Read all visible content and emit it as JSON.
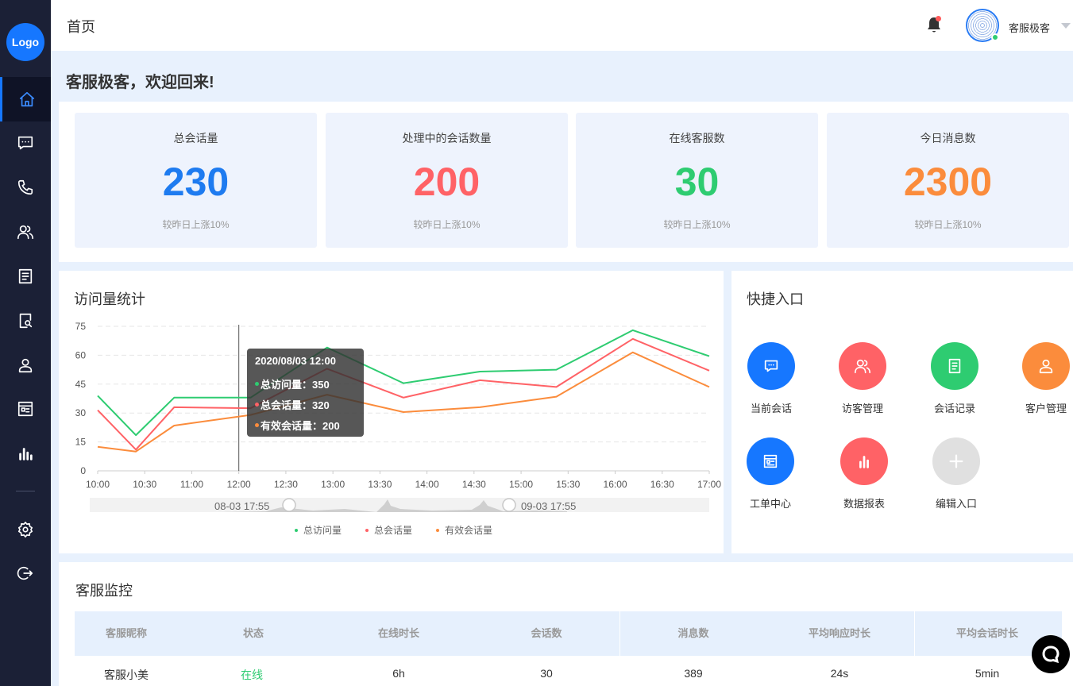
{
  "brand": {
    "logo_text": "Logo"
  },
  "header": {
    "title": "首页",
    "user_name": "客服极客"
  },
  "welcome": "客服极客，欢迎回来!",
  "stats": [
    {
      "label": "总会话量",
      "value": "230",
      "sub": "较昨日上涨10%",
      "color": "#1e7bf0"
    },
    {
      "label": "处理中的会话数量",
      "value": "200",
      "sub": "较昨日上涨10%",
      "color": "#ff6266"
    },
    {
      "label": "在线客服数",
      "value": "30",
      "sub": "较昨日上涨10%",
      "color": "#2ecc71"
    },
    {
      "label": "今日消息数",
      "value": "2300",
      "sub": "较昨日上涨10%",
      "color": "#fb8c3c"
    }
  ],
  "visits": {
    "title": "访问量统计",
    "tooltip": {
      "time": "2020/08/03 12:00",
      "rows": [
        {
          "text": "总访问量：350",
          "color": "#2ecc71"
        },
        {
          "text": "总会话量：320",
          "color": "#ff6266"
        },
        {
          "text": "有效会话量：200",
          "color": "#fb8c3c"
        }
      ]
    },
    "slider": {
      "start": "08-03 17:55",
      "end": "09-03 17:55"
    },
    "legend": [
      {
        "name": "总访问量",
        "color": "#2ecc71"
      },
      {
        "name": "总会话量",
        "color": "#ff6266"
      },
      {
        "name": "有效会话量",
        "color": "#fb8c3c"
      }
    ]
  },
  "chart_data": {
    "type": "line",
    "x": [
      "10:00",
      "10:30",
      "11:00",
      "12:00",
      "12:30",
      "13:00",
      "13:30",
      "14:00",
      "14:30",
      "15:00",
      "15:30",
      "16:00",
      "16:30",
      "17:00"
    ],
    "xticks": [
      "10:00",
      "10:30",
      "11:00",
      "12:00",
      "12:30",
      "13:00",
      "13:30",
      "14:00",
      "14:30",
      "15:00",
      "15:30",
      "16:00",
      "16:30",
      "17:00"
    ],
    "yticks": [
      0,
      15,
      30,
      45,
      60,
      75
    ],
    "ylim": [
      0,
      75
    ],
    "series": [
      {
        "name": "总访问量",
        "color": "#2ecc71",
        "points": [
          [
            0,
            39
          ],
          [
            0.5,
            18.5
          ],
          [
            1,
            38
          ],
          [
            2,
            38
          ],
          [
            3,
            64
          ],
          [
            4,
            45.5
          ],
          [
            5,
            51.5
          ],
          [
            6,
            52.5
          ],
          [
            7,
            73
          ],
          [
            8,
            59.5
          ]
        ]
      },
      {
        "name": "总会话量",
        "color": "#ff6266",
        "points": [
          [
            0,
            31.5
          ],
          [
            0.5,
            11
          ],
          [
            1,
            33
          ],
          [
            2,
            32.5
          ],
          [
            3,
            53
          ],
          [
            4,
            38
          ],
          [
            5,
            47
          ],
          [
            6,
            43.5
          ],
          [
            7,
            68.5
          ],
          [
            8,
            52
          ]
        ]
      },
      {
        "name": "有效会话量",
        "color": "#fb8c3c",
        "points": [
          [
            0,
            12.5
          ],
          [
            0.5,
            10
          ],
          [
            1,
            23.5
          ],
          [
            2,
            29
          ],
          [
            3,
            39.5
          ],
          [
            4,
            30.5
          ],
          [
            5,
            33
          ],
          [
            6,
            38.5
          ],
          [
            7,
            61.5
          ],
          [
            8,
            43.5
          ]
        ]
      }
    ]
  },
  "quick": {
    "title": "快捷入口",
    "items": [
      {
        "label": "当前会话",
        "color": "#1677ff",
        "icon": "chat-icon"
      },
      {
        "label": "访客管理",
        "color": "#ff6266",
        "icon": "users-icon"
      },
      {
        "label": "会话记录",
        "color": "#2ecc71",
        "icon": "record-icon"
      },
      {
        "label": "客户管理",
        "color": "#fb8c3c",
        "icon": "user-icon"
      },
      {
        "label": "工单中心",
        "color": "#1677ff",
        "icon": "ticket-icon"
      },
      {
        "label": "数据报表",
        "color": "#ff6266",
        "icon": "bar-chart-icon"
      },
      {
        "label": "编辑入口",
        "color": "#e0e0e0",
        "icon": "plus-icon"
      }
    ]
  },
  "monitor": {
    "title": "客服监控",
    "columns": [
      "客服昵称",
      "状态",
      "在线时长",
      "会话数",
      "消息数",
      "平均响应时长",
      "平均会话时长"
    ],
    "rows": [
      [
        "客服小美",
        "在线",
        "6h",
        "30",
        "389",
        "24s",
        "5min"
      ]
    ]
  }
}
